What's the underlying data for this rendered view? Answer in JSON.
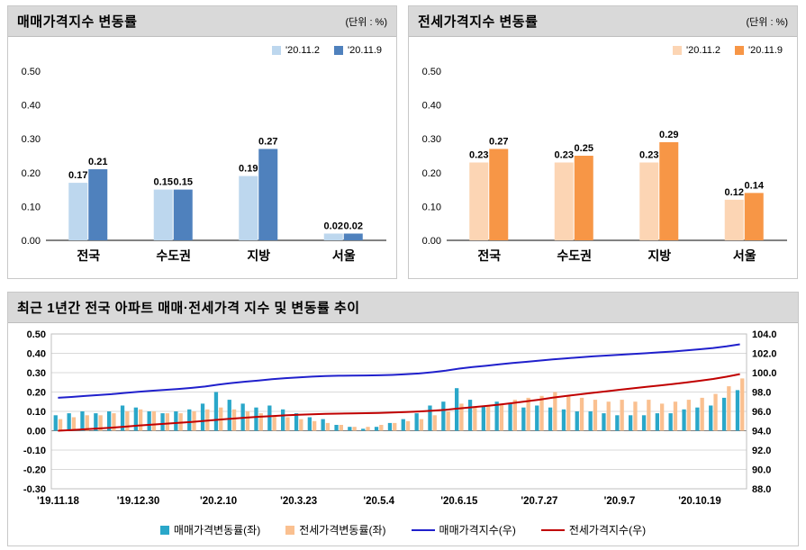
{
  "chart_data": [
    {
      "type": "bar",
      "title": "매매가격지수 변동률",
      "unit": "(단위 : %)",
      "categories": [
        "전국",
        "수도권",
        "지방",
        "서울"
      ],
      "series": [
        {
          "name": "'20.11.2",
          "values": [
            0.17,
            0.15,
            0.19,
            0.02
          ]
        },
        {
          "name": "'20.11.9",
          "values": [
            0.21,
            0.15,
            0.27,
            0.02
          ]
        }
      ],
      "colors": [
        "#bdd7ee",
        "#4f81bd"
      ],
      "ymax": 0.5,
      "yticks": [
        "0.00",
        "0.10",
        "0.20",
        "0.30",
        "0.40",
        "0.50"
      ],
      "grid": false,
      "legend_position": "top-right"
    },
    {
      "type": "bar",
      "title": "전세가격지수 변동률",
      "unit": "(단위 : %)",
      "categories": [
        "전국",
        "수도권",
        "지방",
        "서울"
      ],
      "series": [
        {
          "name": "'20.11.2",
          "values": [
            0.23,
            0.23,
            0.23,
            0.12
          ]
        },
        {
          "name": "'20.11.9",
          "values": [
            0.27,
            0.25,
            0.29,
            0.14
          ]
        }
      ],
      "colors": [
        "#fcd5b4",
        "#f79646"
      ],
      "ymax": 0.5,
      "yticks": [
        "0.00",
        "0.10",
        "0.20",
        "0.30",
        "0.40",
        "0.50"
      ],
      "grid": false,
      "legend_position": "top-right"
    },
    {
      "type": "combo",
      "title": "최근 1년간 전국 아파트 매매·전세가격 지수 및 변동률 추이",
      "x_tick_labels": [
        "'19.11.18",
        "'19.12.30",
        "'20.2.10",
        "'20.3.23",
        "'20.5.4",
        "'20.6.15",
        "'20.7.27",
        "'20.9.7",
        "'20.10.19"
      ],
      "x_tick_indices": [
        0,
        6,
        12,
        18,
        24,
        30,
        36,
        42,
        48
      ],
      "left_range": [
        -0.3,
        0.5
      ],
      "left_ticks": [
        "0.50",
        "0.40",
        "0.30",
        "0.20",
        "0.10",
        "0.00",
        "-0.10",
        "-0.20",
        "-0.30"
      ],
      "right_range": [
        88.0,
        104.0
      ],
      "right_ticks": [
        "104.0",
        "102.0",
        "100.0",
        "98.0",
        "96.0",
        "94.0",
        "92.0",
        "90.0",
        "88.0"
      ],
      "grid": true,
      "legend_position": "bottom",
      "bar_series": [
        {
          "name": "매매가격변동률(좌)",
          "axis": "left",
          "color": "#2aa7c9",
          "values": [
            0.08,
            0.09,
            0.1,
            0.09,
            0.1,
            0.13,
            0.12,
            0.1,
            0.09,
            0.1,
            0.11,
            0.14,
            0.2,
            0.16,
            0.14,
            0.12,
            0.13,
            0.11,
            0.09,
            0.07,
            0.06,
            0.03,
            0.02,
            0.01,
            0.02,
            0.04,
            0.06,
            0.09,
            0.13,
            0.15,
            0.22,
            0.16,
            0.13,
            0.15,
            0.14,
            0.12,
            0.13,
            0.12,
            0.11,
            0.1,
            0.1,
            0.09,
            0.08,
            0.08,
            0.08,
            0.09,
            0.09,
            0.11,
            0.12,
            0.13,
            0.17,
            0.21
          ]
        },
        {
          "name": "전세가격변동률(좌)",
          "axis": "left",
          "color": "#fac090",
          "values": [
            0.06,
            0.07,
            0.08,
            0.08,
            0.09,
            0.1,
            0.11,
            0.1,
            0.09,
            0.09,
            0.1,
            0.11,
            0.12,
            0.11,
            0.1,
            0.09,
            0.08,
            0.07,
            0.06,
            0.05,
            0.04,
            0.03,
            0.02,
            0.02,
            0.03,
            0.04,
            0.05,
            0.06,
            0.08,
            0.1,
            0.14,
            0.12,
            0.13,
            0.14,
            0.16,
            0.17,
            0.18,
            0.2,
            0.18,
            0.17,
            0.16,
            0.15,
            0.16,
            0.15,
            0.16,
            0.14,
            0.15,
            0.16,
            0.17,
            0.19,
            0.23,
            0.27
          ]
        }
      ],
      "line_series": [
        {
          "name": "매매가격지수(우)",
          "axis": "right",
          "color": "#2020cc",
          "values": [
            97.4,
            97.49,
            97.59,
            97.68,
            97.78,
            97.91,
            98.03,
            98.13,
            98.22,
            98.32,
            98.43,
            98.57,
            98.77,
            98.93,
            99.07,
            99.19,
            99.32,
            99.43,
            99.52,
            99.59,
            99.65,
            99.68,
            99.7,
            99.71,
            99.73,
            99.77,
            99.83,
            99.92,
            100.05,
            100.2,
            100.42,
            100.58,
            100.71,
            100.86,
            101.0,
            101.12,
            101.25,
            101.37,
            101.48,
            101.58,
            101.68,
            101.77,
            101.85,
            101.93,
            102.01,
            102.1,
            102.19,
            102.3,
            102.42,
            102.55,
            102.72,
            102.93
          ]
        },
        {
          "name": "전세가격지수(우)",
          "axis": "right",
          "color": "#c00000",
          "values": [
            94.0,
            94.07,
            94.15,
            94.23,
            94.32,
            94.42,
            94.53,
            94.63,
            94.72,
            94.81,
            94.91,
            95.02,
            95.14,
            95.25,
            95.35,
            95.44,
            95.52,
            95.59,
            95.65,
            95.7,
            95.74,
            95.77,
            95.79,
            95.81,
            95.84,
            95.88,
            95.93,
            95.99,
            96.07,
            96.17,
            96.31,
            96.43,
            96.56,
            96.7,
            96.86,
            97.03,
            97.21,
            97.41,
            97.59,
            97.76,
            97.92,
            98.07,
            98.23,
            98.38,
            98.54,
            98.68,
            98.83,
            98.99,
            99.16,
            99.35,
            99.58,
            99.85
          ]
        }
      ]
    }
  ],
  "colors": {
    "band_bg": "#d9d9d9",
    "grid_line": "#d9d9d9",
    "zero_line": "#7f7f7f",
    "plot_border": "#bfbfbf",
    "axis_line": "#595959"
  }
}
